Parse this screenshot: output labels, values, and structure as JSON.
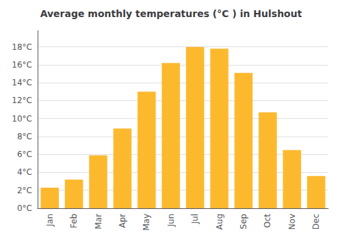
{
  "chart_data": {
    "type": "bar",
    "title": "Average monthly temperatures (°C ) in Hulshout",
    "categories": [
      "Jan",
      "Feb",
      "Mar",
      "Apr",
      "May",
      "Jun",
      "Jul",
      "Aug",
      "Sep",
      "Oct",
      "Nov",
      "Dec"
    ],
    "values": [
      2.3,
      3.2,
      5.9,
      8.9,
      13.0,
      16.2,
      18.0,
      17.8,
      15.1,
      10.7,
      6.5,
      3.6
    ],
    "color": "#FDB92E",
    "ylim": [
      0,
      19.8
    ],
    "yticks": [
      {
        "value": 0,
        "label": "0°C"
      },
      {
        "value": 2,
        "label": "2°C"
      },
      {
        "value": 4,
        "label": "4°C"
      },
      {
        "value": 6,
        "label": "6°C"
      },
      {
        "value": 8,
        "label": "8°C"
      },
      {
        "value": 10,
        "label": "10°C"
      },
      {
        "value": 12,
        "label": "12°C"
      },
      {
        "value": 14,
        "label": "14°C"
      },
      {
        "value": 16,
        "label": "16°C"
      },
      {
        "value": 18,
        "label": "18°C"
      }
    ],
    "grid": true
  }
}
